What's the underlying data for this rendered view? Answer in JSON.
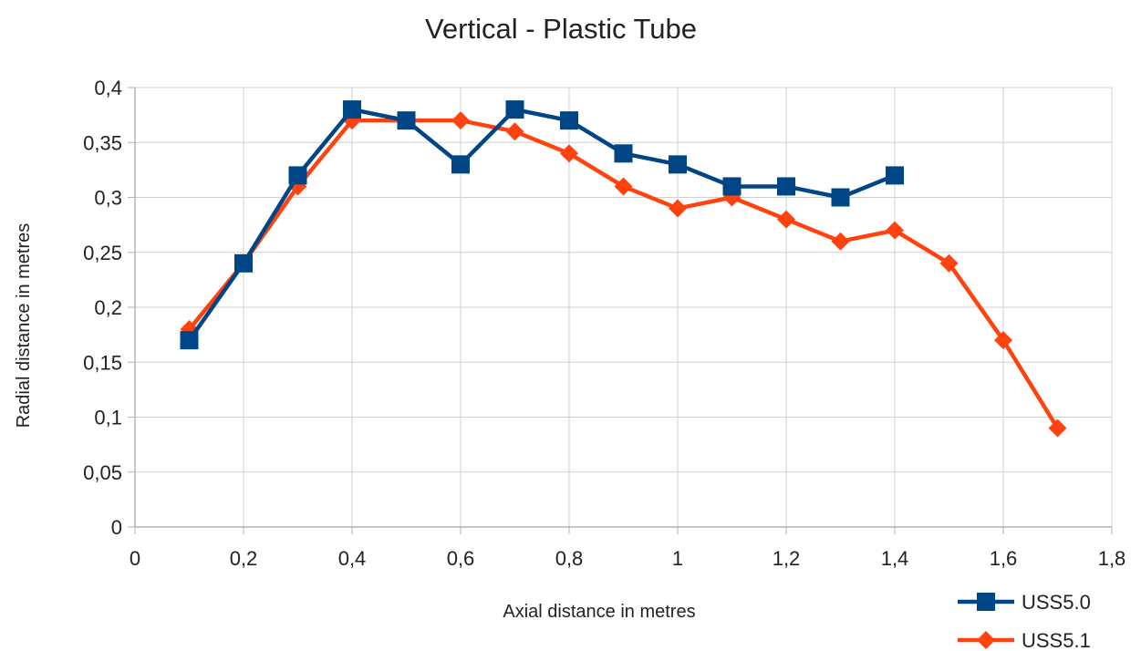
{
  "chart_data": {
    "type": "line",
    "title": "Vertical - Plastic Tube",
    "xlabel": "Axial distance in metres",
    "ylabel": "Radial distance in metres",
    "xlim": [
      0,
      1.8
    ],
    "ylim": [
      0,
      0.4
    ],
    "x_ticks": [
      "0",
      "0,2",
      "0,4",
      "0,6",
      "0,8",
      "1",
      "1,2",
      "1,4",
      "1,6",
      "1,8"
    ],
    "x_tick_values": [
      0,
      0.2,
      0.4,
      0.6,
      0.8,
      1.0,
      1.2,
      1.4,
      1.6,
      1.8
    ],
    "y_ticks": [
      "0",
      "0,05",
      "0,1",
      "0,15",
      "0,2",
      "0,25",
      "0,3",
      "0,35",
      "0,4"
    ],
    "y_tick_values": [
      0,
      0.05,
      0.1,
      0.15,
      0.2,
      0.25,
      0.3,
      0.35,
      0.4
    ],
    "grid": true,
    "legend_position": "bottom-right",
    "series": [
      {
        "name": "USS5.0",
        "color": "#004586",
        "marker": "square",
        "x": [
          0.1,
          0.2,
          0.3,
          0.4,
          0.5,
          0.6,
          0.7,
          0.8,
          0.9,
          1.0,
          1.1,
          1.2,
          1.3,
          1.4
        ],
        "y": [
          0.17,
          0.24,
          0.32,
          0.38,
          0.37,
          0.33,
          0.38,
          0.37,
          0.34,
          0.33,
          0.31,
          0.31,
          0.3,
          0.32
        ]
      },
      {
        "name": "USS5.1",
        "color": "#ff420e",
        "marker": "diamond",
        "x": [
          0.1,
          0.2,
          0.3,
          0.4,
          0.5,
          0.6,
          0.7,
          0.8,
          0.9,
          1.0,
          1.1,
          1.2,
          1.3,
          1.4,
          1.5,
          1.6,
          1.7
        ],
        "y": [
          0.18,
          0.24,
          0.31,
          0.37,
          0.37,
          0.37,
          0.36,
          0.34,
          0.31,
          0.29,
          0.3,
          0.28,
          0.26,
          0.27,
          0.24,
          0.17,
          0.09
        ]
      }
    ]
  }
}
